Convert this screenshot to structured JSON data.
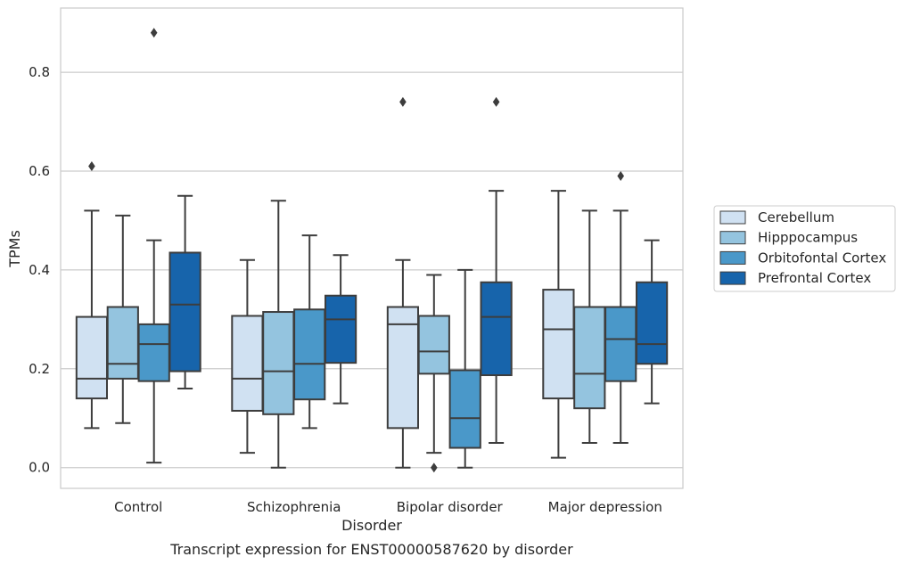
{
  "chart_data": {
    "type": "box",
    "title": "",
    "caption": "Transcript expression for ENST00000587620 by disorder",
    "xlabel": "Disorder",
    "ylabel": "TPMs",
    "ylim": [
      -0.042,
      0.93
    ],
    "yticks": [
      0.0,
      0.2,
      0.4,
      0.6,
      0.8
    ],
    "ytick_labels": [
      "0.0",
      "0.2",
      "0.4",
      "0.6",
      "0.8"
    ],
    "grid": "horizontal",
    "legend_position": "right",
    "categories": [
      "Control",
      "Schizophrenia",
      "Bipolar disorder",
      "Major depression"
    ],
    "series": [
      {
        "name": "Cerebellum",
        "color": "#d0e1f2",
        "boxes": [
          {
            "whisker_low": 0.08,
            "q1": 0.14,
            "median": 0.18,
            "q3": 0.305,
            "whisker_high": 0.52,
            "outliers": [
              0.61
            ]
          },
          {
            "whisker_low": 0.03,
            "q1": 0.115,
            "median": 0.18,
            "q3": 0.307,
            "whisker_high": 0.42,
            "outliers": []
          },
          {
            "whisker_low": 0.0,
            "q1": 0.08,
            "median": 0.29,
            "q3": 0.325,
            "whisker_high": 0.42,
            "outliers": [
              0.74
            ]
          },
          {
            "whisker_low": 0.02,
            "q1": 0.14,
            "median": 0.28,
            "q3": 0.36,
            "whisker_high": 0.56,
            "outliers": []
          }
        ]
      },
      {
        "name": "Hipppocampus",
        "color": "#94c4df",
        "boxes": [
          {
            "whisker_low": 0.09,
            "q1": 0.18,
            "median": 0.21,
            "q3": 0.325,
            "whisker_high": 0.51,
            "outliers": []
          },
          {
            "whisker_low": 0.0,
            "q1": 0.108,
            "median": 0.195,
            "q3": 0.315,
            "whisker_high": 0.54,
            "outliers": []
          },
          {
            "whisker_low": 0.03,
            "q1": 0.19,
            "median": 0.235,
            "q3": 0.307,
            "whisker_high": 0.39,
            "outliers": [
              0.0
            ]
          },
          {
            "whisker_low": 0.05,
            "q1": 0.12,
            "median": 0.19,
            "q3": 0.325,
            "whisker_high": 0.52,
            "outliers": []
          }
        ]
      },
      {
        "name": "Orbitofontal Cortex",
        "color": "#4a98c9",
        "boxes": [
          {
            "whisker_low": 0.01,
            "q1": 0.175,
            "median": 0.25,
            "q3": 0.29,
            "whisker_high": 0.46,
            "outliers": [
              0.88
            ]
          },
          {
            "whisker_low": 0.08,
            "q1": 0.138,
            "median": 0.21,
            "q3": 0.32,
            "whisker_high": 0.47,
            "outliers": []
          },
          {
            "whisker_low": 0.0,
            "q1": 0.04,
            "median": 0.1,
            "q3": 0.197,
            "whisker_high": 0.4,
            "outliers": []
          },
          {
            "whisker_low": 0.05,
            "q1": 0.175,
            "median": 0.26,
            "q3": 0.325,
            "whisker_high": 0.52,
            "outliers": [
              0.59
            ]
          }
        ]
      },
      {
        "name": "Prefrontal Cortex",
        "color": "#1764ab",
        "boxes": [
          {
            "whisker_low": 0.16,
            "q1": 0.195,
            "median": 0.33,
            "q3": 0.435,
            "whisker_high": 0.55,
            "outliers": []
          },
          {
            "whisker_low": 0.13,
            "q1": 0.212,
            "median": 0.3,
            "q3": 0.348,
            "whisker_high": 0.43,
            "outliers": []
          },
          {
            "whisker_low": 0.05,
            "q1": 0.187,
            "median": 0.305,
            "q3": 0.375,
            "whisker_high": 0.56,
            "outliers": [
              0.74
            ]
          },
          {
            "whisker_low": 0.13,
            "q1": 0.21,
            "median": 0.25,
            "q3": 0.375,
            "whisker_high": 0.46,
            "outliers": []
          }
        ]
      }
    ]
  }
}
